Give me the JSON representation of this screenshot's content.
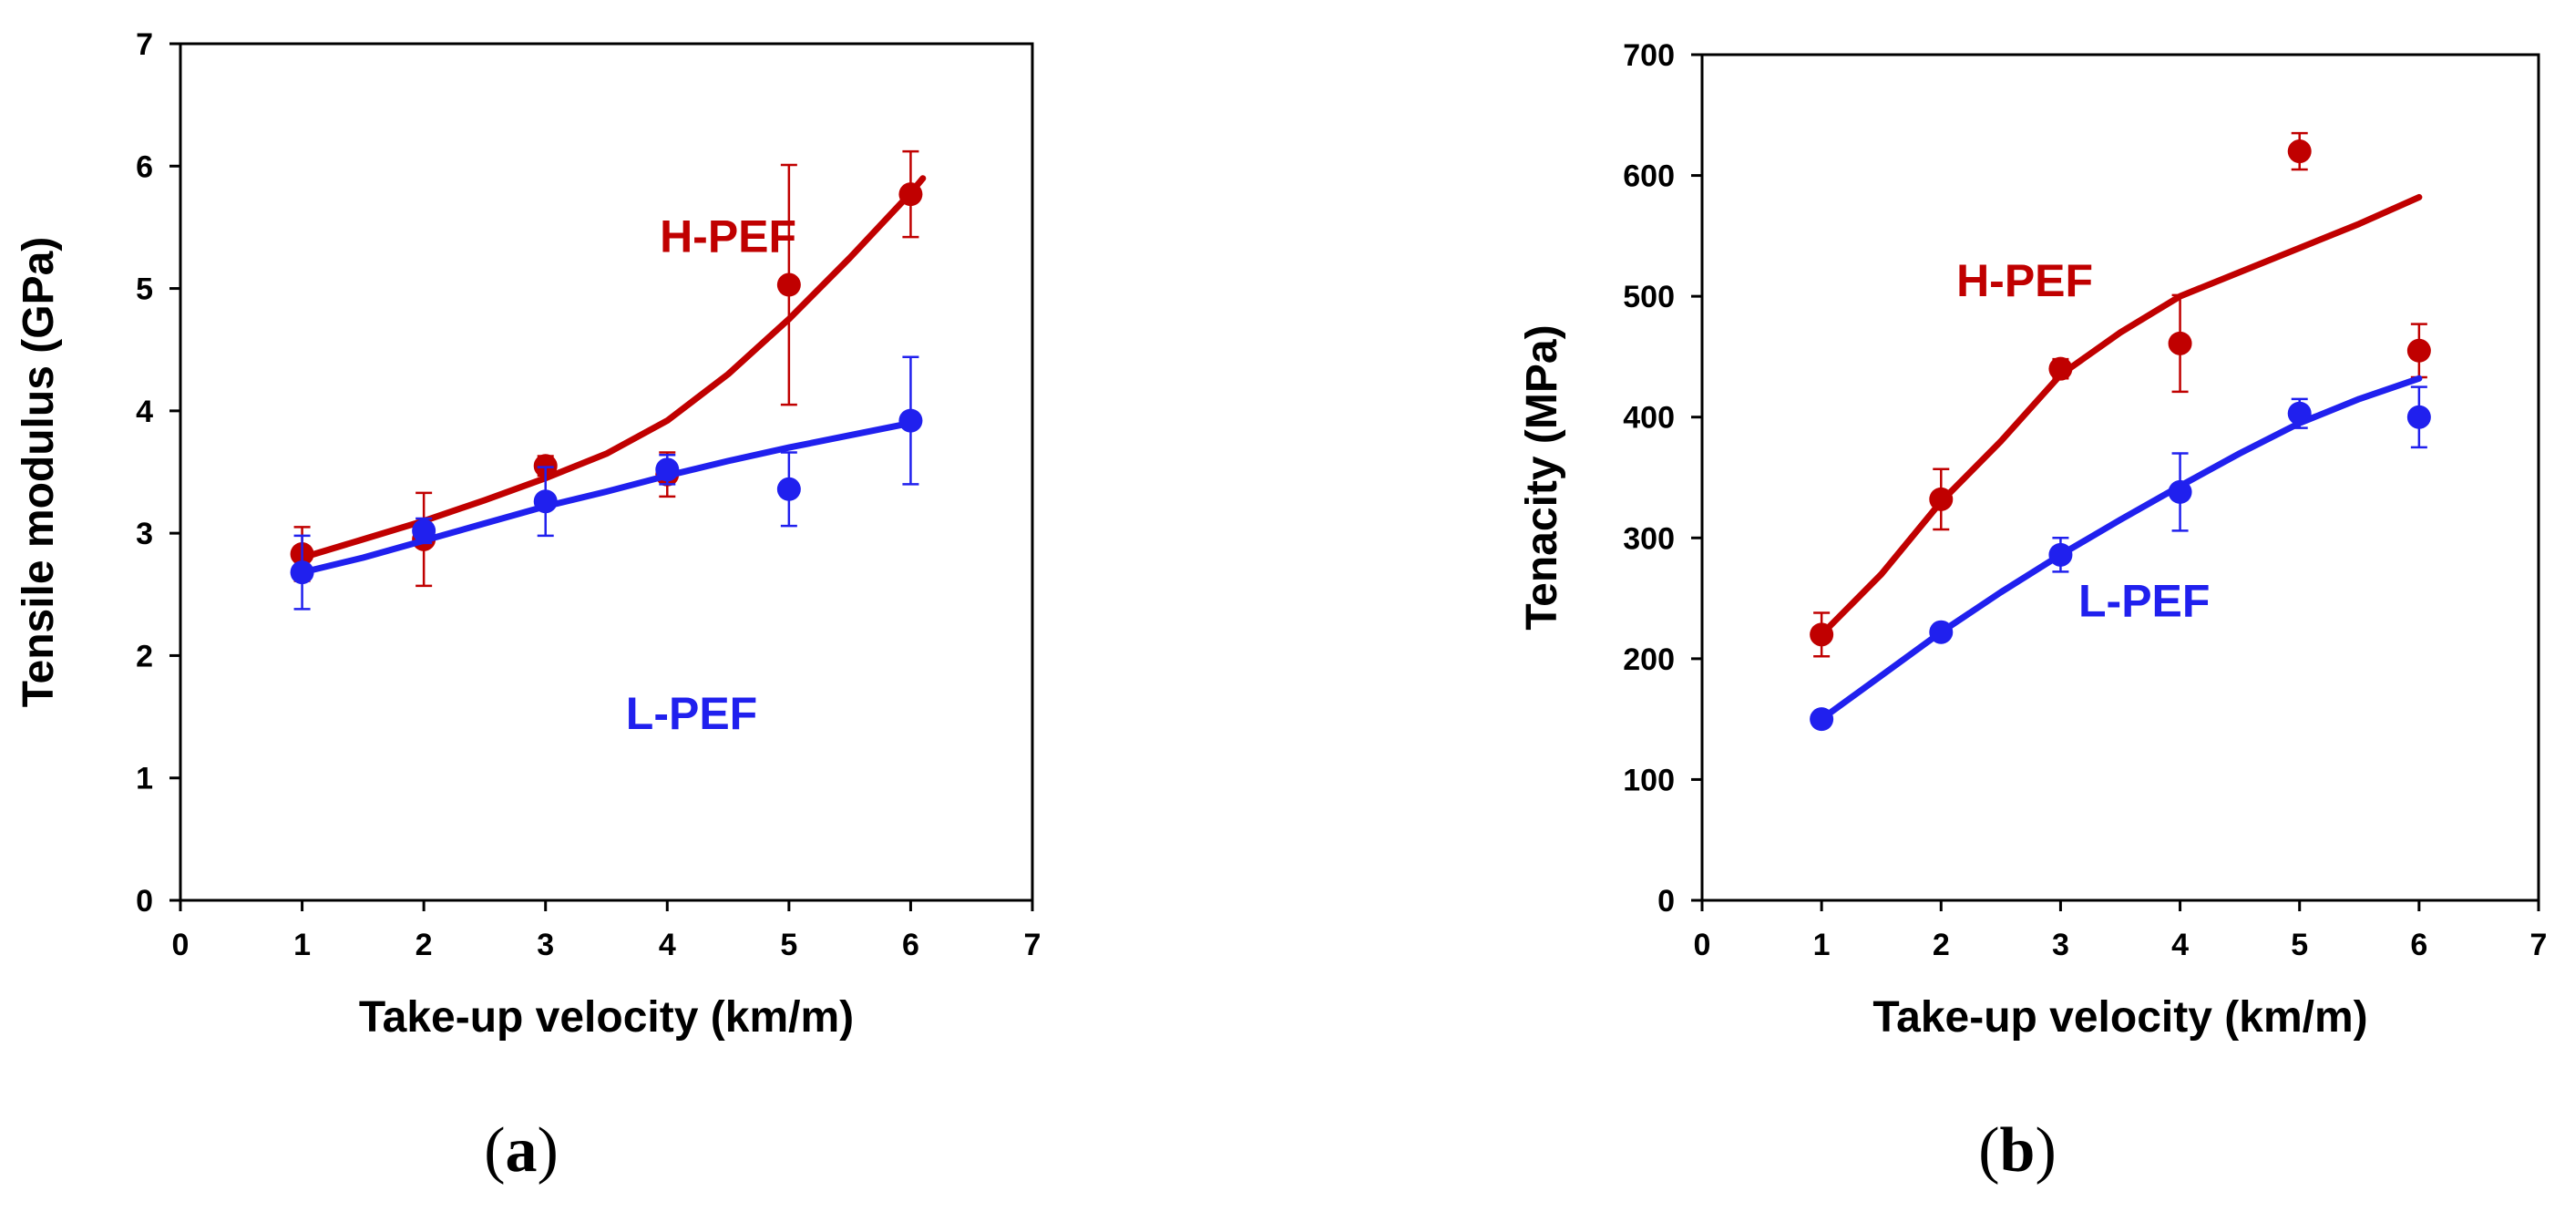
{
  "chart_data": [
    {
      "type": "scatter",
      "panel_label": "a",
      "title": "",
      "xlabel": "Take-up velocity (km/m)",
      "ylabel": "Tensile modulus (GPa)",
      "xlim": [
        0,
        7
      ],
      "ylim": [
        0,
        7
      ],
      "xticks": [
        0,
        1,
        2,
        3,
        4,
        5,
        6,
        7
      ],
      "yticks": [
        0,
        1,
        2,
        3,
        4,
        5,
        6,
        7
      ],
      "grid": false,
      "series": [
        {
          "name": "H-PEF",
          "color": "#c00000",
          "x": [
            1,
            2,
            3,
            4,
            5,
            6
          ],
          "y": [
            2.83,
            2.95,
            3.55,
            3.48,
            5.03,
            5.77
          ],
          "err": [
            0.22,
            0.38,
            0.08,
            0.18,
            0.98,
            0.35
          ],
          "fit": {
            "x": [
              1,
              1.5,
              2,
              2.5,
              3,
              3.5,
              4,
              4.5,
              5,
              5.5,
              6,
              6.1
            ],
            "y": [
              2.8,
              2.95,
              3.1,
              3.27,
              3.45,
              3.65,
              3.92,
              4.3,
              4.75,
              5.25,
              5.78,
              5.9
            ]
          }
        },
        {
          "name": "L-PEF",
          "color": "#2020ee",
          "x": [
            1,
            2,
            3,
            4,
            5,
            6
          ],
          "y": [
            2.68,
            3.02,
            3.26,
            3.52,
            3.36,
            3.92
          ],
          "err": [
            0.3,
            0.1,
            0.28,
            0.12,
            0.3,
            0.52
          ],
          "fit": {
            "x": [
              1,
              1.5,
              2,
              2.5,
              3,
              3.5,
              4,
              4.5,
              5,
              5.5,
              6
            ],
            "y": [
              2.68,
              2.8,
              2.94,
              3.08,
              3.22,
              3.34,
              3.47,
              3.59,
              3.7,
              3.8,
              3.9
            ]
          }
        }
      ]
    },
    {
      "type": "scatter",
      "panel_label": "b",
      "title": "",
      "xlabel": "Take-up velocity (km/m)",
      "ylabel": "Tenacity (MPa)",
      "xlim": [
        0,
        7
      ],
      "ylim": [
        0,
        700
      ],
      "xticks": [
        0,
        1,
        2,
        3,
        4,
        5,
        6,
        7
      ],
      "yticks": [
        0,
        100,
        200,
        300,
        400,
        500,
        600,
        700
      ],
      "grid": false,
      "series": [
        {
          "name": "H-PEF",
          "color": "#c00000",
          "x": [
            1,
            2,
            3,
            4,
            5,
            6
          ],
          "y": [
            220,
            332,
            440,
            461,
            620,
            455
          ],
          "err": [
            18,
            25,
            8,
            40,
            15,
            22
          ],
          "fit": {
            "x": [
              1,
              1.5,
              2,
              2.5,
              3,
              3.5,
              4,
              4.5,
              5,
              5.5,
              6
            ],
            "y": [
              220,
              270,
              330,
              380,
              435,
              470,
              500,
              520,
              540,
              560,
              582
            ]
          }
        },
        {
          "name": "L-PEF",
          "color": "#2020ee",
          "x": [
            1,
            2,
            3,
            4,
            5,
            6
          ],
          "y": [
            150,
            222,
            286,
            338,
            403,
            400
          ],
          "err": [
            5,
            6,
            14,
            32,
            12,
            25
          ],
          "fit": {
            "x": [
              1,
              1.5,
              2,
              2.5,
              3,
              3.5,
              4,
              4.5,
              5,
              5.5,
              6
            ],
            "y": [
              150,
              186,
              222,
              255,
              286,
              315,
              343,
              370,
              395,
              415,
              432
            ]
          }
        }
      ]
    }
  ]
}
